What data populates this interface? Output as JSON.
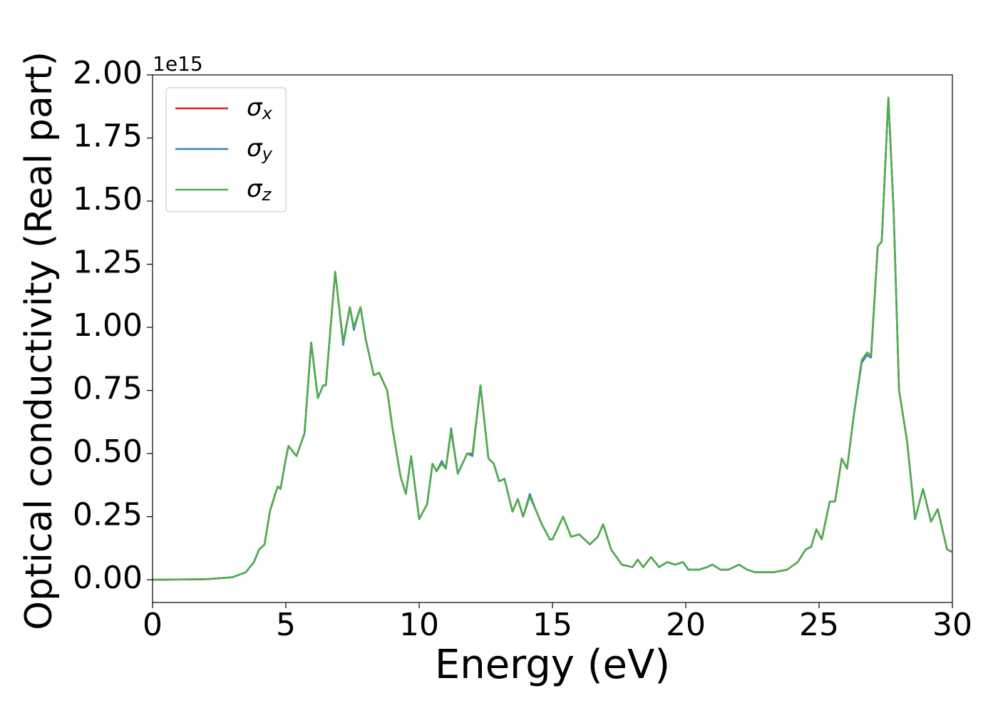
{
  "chart_data": {
    "type": "line",
    "xlabel": "Energy (eV)",
    "ylabel": "Optical conductivity (Real part)",
    "y_offset_label": "1e15",
    "xlim": [
      0,
      30
    ],
    "xticks": [
      0,
      5,
      10,
      15,
      20,
      25,
      30
    ],
    "ylim": [
      -0.09,
      2.0
    ],
    "yticks": [
      {
        "value": 0,
        "label": "0.00"
      },
      0.25,
      {
        "value": 0.5,
        "label": "0.50"
      },
      0.75,
      {
        "value": 1,
        "label": "1.00"
      },
      1.25,
      {
        "value": 1.5,
        "label": "1.50"
      },
      1.75,
      {
        "value": 2,
        "label": "2.00"
      }
    ],
    "legend": "upper left",
    "x": [
      0,
      2,
      3,
      3.5,
      3.8,
      4.0,
      4.2,
      4.4,
      4.6,
      4.7,
      4.8,
      5.0,
      5.1,
      5.4,
      5.7,
      5.95,
      6.2,
      6.4,
      6.5,
      6.85,
      7.15,
      7.4,
      7.55,
      7.8,
      8.0,
      8.3,
      8.5,
      8.8,
      9.0,
      9.3,
      9.5,
      9.7,
      10.0,
      10.3,
      10.5,
      10.65,
      10.85,
      11.0,
      11.2,
      11.45,
      11.8,
      12.0,
      12.3,
      12.6,
      12.8,
      13.0,
      13.2,
      13.5,
      13.7,
      13.9,
      14.15,
      14.4,
      14.6,
      14.9,
      15.0,
      15.4,
      15.7,
      16.0,
      16.4,
      16.7,
      16.9,
      17.2,
      17.6,
      18.0,
      18.2,
      18.4,
      18.7,
      19.0,
      19.3,
      19.6,
      19.9,
      20.1,
      20.5,
      20.8,
      21.0,
      21.3,
      21.6,
      22.0,
      22.3,
      22.6,
      23.3,
      23.8,
      24.2,
      24.5,
      24.7,
      24.9,
      25.1,
      25.4,
      25.6,
      25.85,
      26.05,
      26.3,
      26.6,
      26.8,
      26.95,
      27.2,
      27.35,
      27.6,
      27.8,
      28.0,
      28.3,
      28.6,
      28.9,
      29.2,
      29.45,
      29.8,
      30.0
    ],
    "series": [
      {
        "name": "σx",
        "color": "#e41a1c",
        "values": [
          0,
          0.002,
          0.01,
          0.03,
          0.07,
          0.12,
          0.14,
          0.27,
          0.34,
          0.37,
          0.36,
          0.48,
          0.53,
          0.49,
          0.58,
          0.94,
          0.72,
          0.77,
          0.77,
          1.22,
          0.94,
          1.08,
          1.0,
          1.08,
          0.95,
          0.81,
          0.82,
          0.75,
          0.6,
          0.41,
          0.34,
          0.49,
          0.24,
          0.3,
          0.46,
          0.43,
          0.46,
          0.44,
          0.59,
          0.42,
          0.5,
          0.5,
          0.77,
          0.48,
          0.46,
          0.39,
          0.4,
          0.27,
          0.32,
          0.25,
          0.33,
          0.27,
          0.22,
          0.16,
          0.16,
          0.25,
          0.17,
          0.18,
          0.14,
          0.17,
          0.22,
          0.12,
          0.06,
          0.05,
          0.08,
          0.05,
          0.09,
          0.05,
          0.07,
          0.06,
          0.07,
          0.04,
          0.04,
          0.05,
          0.06,
          0.04,
          0.04,
          0.06,
          0.04,
          0.03,
          0.03,
          0.04,
          0.07,
          0.12,
          0.13,
          0.2,
          0.16,
          0.31,
          0.31,
          0.48,
          0.44,
          0.65,
          0.87,
          0.9,
          0.89,
          1.32,
          1.34,
          1.91,
          1.45,
          0.75,
          0.55,
          0.24,
          0.36,
          0.23,
          0.28,
          0.12,
          0.11
        ]
      },
      {
        "name": "σy",
        "color": "#377eb8",
        "values": [
          0,
          0.002,
          0.01,
          0.03,
          0.07,
          0.12,
          0.14,
          0.27,
          0.34,
          0.37,
          0.36,
          0.48,
          0.53,
          0.49,
          0.58,
          0.94,
          0.72,
          0.77,
          0.77,
          1.22,
          0.93,
          1.08,
          0.99,
          1.08,
          0.95,
          0.81,
          0.82,
          0.75,
          0.6,
          0.41,
          0.34,
          0.49,
          0.24,
          0.3,
          0.46,
          0.43,
          0.47,
          0.44,
          0.6,
          0.42,
          0.5,
          0.49,
          0.77,
          0.48,
          0.46,
          0.39,
          0.4,
          0.27,
          0.32,
          0.25,
          0.34,
          0.27,
          0.22,
          0.16,
          0.16,
          0.25,
          0.17,
          0.18,
          0.14,
          0.17,
          0.22,
          0.12,
          0.06,
          0.05,
          0.08,
          0.05,
          0.09,
          0.05,
          0.07,
          0.06,
          0.07,
          0.04,
          0.04,
          0.05,
          0.06,
          0.04,
          0.04,
          0.06,
          0.04,
          0.03,
          0.03,
          0.04,
          0.07,
          0.12,
          0.13,
          0.2,
          0.16,
          0.31,
          0.31,
          0.48,
          0.44,
          0.65,
          0.86,
          0.89,
          0.88,
          1.32,
          1.34,
          1.91,
          1.45,
          0.75,
          0.55,
          0.24,
          0.36,
          0.23,
          0.28,
          0.12,
          0.11
        ]
      },
      {
        "name": "σz",
        "color": "#4daf4a",
        "values": [
          0,
          0.002,
          0.01,
          0.03,
          0.07,
          0.12,
          0.14,
          0.27,
          0.34,
          0.37,
          0.36,
          0.48,
          0.53,
          0.49,
          0.58,
          0.94,
          0.72,
          0.77,
          0.77,
          1.22,
          0.94,
          1.08,
          1.0,
          1.08,
          0.95,
          0.81,
          0.82,
          0.75,
          0.6,
          0.41,
          0.34,
          0.49,
          0.24,
          0.3,
          0.46,
          0.43,
          0.46,
          0.44,
          0.59,
          0.42,
          0.5,
          0.5,
          0.77,
          0.48,
          0.46,
          0.39,
          0.4,
          0.27,
          0.32,
          0.25,
          0.33,
          0.27,
          0.22,
          0.16,
          0.16,
          0.25,
          0.17,
          0.18,
          0.14,
          0.17,
          0.22,
          0.12,
          0.06,
          0.05,
          0.08,
          0.05,
          0.09,
          0.05,
          0.07,
          0.06,
          0.07,
          0.04,
          0.04,
          0.05,
          0.06,
          0.04,
          0.04,
          0.06,
          0.04,
          0.03,
          0.03,
          0.04,
          0.07,
          0.12,
          0.13,
          0.2,
          0.16,
          0.31,
          0.31,
          0.48,
          0.44,
          0.65,
          0.87,
          0.9,
          0.89,
          1.32,
          1.34,
          1.91,
          1.45,
          0.75,
          0.55,
          0.24,
          0.36,
          0.23,
          0.28,
          0.12,
          0.11
        ]
      }
    ]
  }
}
